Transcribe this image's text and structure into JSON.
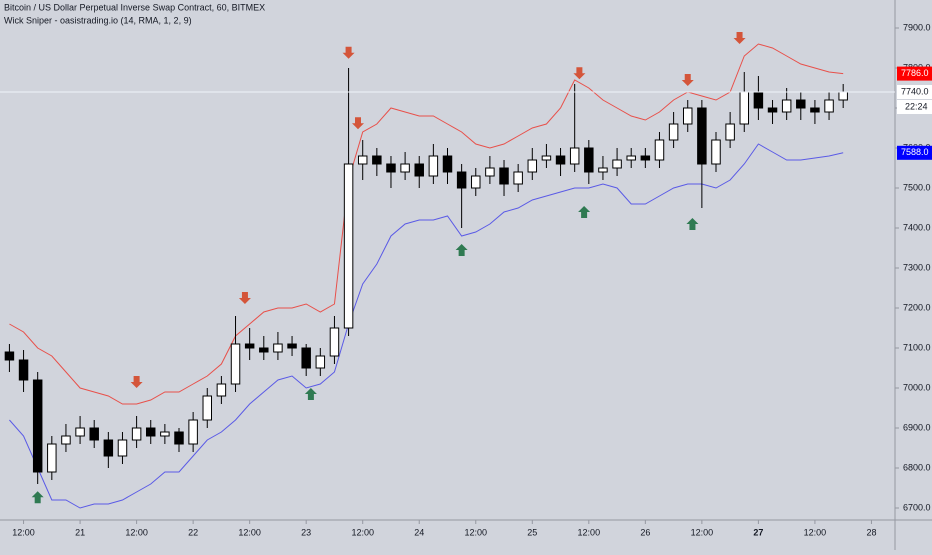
{
  "chart_data": {
    "type": "candlestick",
    "title": "Bitcoin / US Dollar Perpetual Inverse Swap Contract, 60, BITMEX",
    "subtitle": "Wick Sniper - oasistrading.io (14, RMA, 1, 2, 9)",
    "x": [
      9,
      12,
      15,
      18,
      21,
      24,
      27,
      30,
      33,
      36,
      39,
      42,
      45,
      48,
      51,
      54,
      57,
      60,
      63,
      66,
      69,
      72,
      75,
      78,
      81,
      84,
      87,
      90,
      93,
      96,
      99,
      102,
      105,
      108,
      111,
      114,
      117,
      120,
      123,
      126,
      129,
      132,
      135,
      138,
      141,
      144,
      147,
      150,
      153,
      156,
      159,
      162,
      165,
      168,
      171,
      174,
      177,
      180,
      183,
      186
    ],
    "open": [
      7090,
      7070,
      7020,
      6790,
      6860,
      6880,
      6900,
      6870,
      6830,
      6870,
      6900,
      6880,
      6890,
      6860,
      6920,
      6980,
      7010,
      7110,
      7100,
      7090,
      7110,
      7100,
      7050,
      7080,
      7150,
      7560,
      7580,
      7560,
      7540,
      7560,
      7530,
      7580,
      7540,
      7500,
      7530,
      7550,
      7510,
      7540,
      7570,
      7580,
      7560,
      7600,
      7540,
      7550,
      7570,
      7580,
      7570,
      7620,
      7660,
      7700,
      7560,
      7620,
      7660,
      7740,
      7700,
      7690,
      7720,
      7700,
      7690,
      7720
    ],
    "high": [
      7110,
      7095,
      7040,
      6880,
      6910,
      6930,
      6920,
      6890,
      6890,
      6930,
      6920,
      6910,
      6900,
      6940,
      7000,
      7030,
      7180,
      7150,
      7130,
      7140,
      7130,
      7110,
      7100,
      7180,
      7800,
      7620,
      7600,
      7580,
      7590,
      7580,
      7610,
      7600,
      7560,
      7550,
      7580,
      7570,
      7560,
      7600,
      7610,
      7600,
      7760,
      7620,
      7580,
      7600,
      7600,
      7600,
      7640,
      7690,
      7720,
      7720,
      7640,
      7690,
      7790,
      7780,
      7720,
      7750,
      7740,
      7720,
      7740,
      7760
    ],
    "low": [
      7040,
      6990,
      6760,
      6770,
      6840,
      6860,
      6850,
      6800,
      6810,
      6850,
      6860,
      6860,
      6840,
      6840,
      6900,
      6960,
      6990,
      7070,
      7070,
      7070,
      7080,
      7030,
      7030,
      7060,
      7130,
      7520,
      7530,
      7500,
      7520,
      7500,
      7510,
      7510,
      7400,
      7480,
      7510,
      7480,
      7490,
      7520,
      7550,
      7530,
      7540,
      7510,
      7520,
      7530,
      7550,
      7550,
      7550,
      7600,
      7640,
      7450,
      7540,
      7600,
      7640,
      7670,
      7660,
      7670,
      7670,
      7660,
      7670,
      7700
    ],
    "close": [
      7070,
      7020,
      6790,
      6860,
      6880,
      6900,
      6870,
      6830,
      6870,
      6900,
      6880,
      6890,
      6860,
      6920,
      6980,
      7010,
      7110,
      7100,
      7090,
      7110,
      7100,
      7050,
      7080,
      7150,
      7560,
      7580,
      7560,
      7540,
      7560,
      7530,
      7580,
      7540,
      7500,
      7530,
      7550,
      7510,
      7540,
      7570,
      7580,
      7560,
      7600,
      7540,
      7550,
      7570,
      7580,
      7570,
      7620,
      7660,
      7700,
      7560,
      7620,
      7660,
      7740,
      7700,
      7690,
      7720,
      7700,
      7690,
      7720,
      7740
    ],
    "upper_band": {
      "color": "#e8504a",
      "values": [
        7160,
        7140,
        7100,
        7080,
        7040,
        7000,
        6990,
        6980,
        6960,
        6960,
        6970,
        6990,
        6990,
        7010,
        7030,
        7060,
        7130,
        7160,
        7190,
        7200,
        7200,
        7210,
        7190,
        7210,
        7520,
        7640,
        7660,
        7700,
        7690,
        7680,
        7680,
        7660,
        7640,
        7610,
        7600,
        7610,
        7630,
        7650,
        7660,
        7700,
        7770,
        7750,
        7720,
        7700,
        7680,
        7670,
        7690,
        7720,
        7740,
        7730,
        7720,
        7740,
        7830,
        7860,
        7850,
        7830,
        7810,
        7800,
        7790,
        7786
      ]
    },
    "lower_band": {
      "color": "#5a5ae6",
      "values": [
        6920,
        6880,
        6800,
        6720,
        6720,
        6700,
        6710,
        6710,
        6720,
        6740,
        6760,
        6790,
        6790,
        6830,
        6870,
        6890,
        6920,
        6960,
        6990,
        7020,
        7030,
        7000,
        7010,
        7040,
        7160,
        7260,
        7310,
        7380,
        7410,
        7420,
        7420,
        7430,
        7380,
        7390,
        7410,
        7440,
        7450,
        7470,
        7480,
        7490,
        7500,
        7500,
        7510,
        7500,
        7460,
        7460,
        7480,
        7500,
        7510,
        7510,
        7500,
        7520,
        7560,
        7610,
        7590,
        7570,
        7570,
        7575,
        7580,
        7588
      ]
    },
    "sell_signals": {
      "color": "#d4553a",
      "x": [
        36,
        59,
        81,
        83,
        130,
        153,
        164
      ],
      "values": [
        7010,
        7220,
        7833,
        7657,
        7782,
        7765,
        7870
      ]
    },
    "buy_signals": {
      "color": "#2f7a52",
      "x": [
        15,
        73,
        105,
        131,
        154
      ],
      "values": [
        6732,
        6990,
        7350,
        7445,
        7415
      ]
    },
    "price_tags": [
      {
        "value": 7786,
        "label": "7786.0",
        "color": "#ff0000"
      },
      {
        "value": 7740,
        "label": "7740.0",
        "color": "#ffffff"
      },
      {
        "value": 7588,
        "label": "7588.0",
        "color": "#0000ff"
      }
    ],
    "countdown": "22:24",
    "xlim": [
      7,
      197
    ],
    "ylim": [
      6670,
      7970
    ],
    "xticks": [
      {
        "value": 12,
        "label": "12:00"
      },
      {
        "value": 24,
        "label": "21"
      },
      {
        "value": 36,
        "label": "12:00"
      },
      {
        "value": 48,
        "label": "22"
      },
      {
        "value": 60,
        "label": "12:00"
      },
      {
        "value": 72,
        "label": "23"
      },
      {
        "value": 84,
        "label": "12:00"
      },
      {
        "value": 96,
        "label": "24"
      },
      {
        "value": 108,
        "label": "12:00"
      },
      {
        "value": 120,
        "label": "25"
      },
      {
        "value": 132,
        "label": "12:00"
      },
      {
        "value": 144,
        "label": "26"
      },
      {
        "value": 156,
        "label": "12:00"
      },
      {
        "value": 168,
        "label": "27"
      },
      {
        "value": 180,
        "label": "12:00"
      },
      {
        "value": 192,
        "label": "28"
      }
    ],
    "yticks": [
      {
        "value": 6700,
        "label": "6700.0"
      },
      {
        "value": 6800,
        "label": "6800.0"
      },
      {
        "value": 6900,
        "label": "6900.0"
      },
      {
        "value": 7000,
        "label": "7000.0"
      },
      {
        "value": 7100,
        "label": "7100.0"
      },
      {
        "value": 7200,
        "label": "7200.0"
      },
      {
        "value": 7300,
        "label": "7300.0"
      },
      {
        "value": 7400,
        "label": "7400.0"
      },
      {
        "value": 7500,
        "label": "7500.0"
      },
      {
        "value": 7600,
        "label": "7600.0"
      },
      {
        "value": 7700,
        "label": "7700.0"
      },
      {
        "value": 7800,
        "label": "7800.0"
      },
      {
        "value": 7900,
        "label": "7900.0"
      }
    ]
  }
}
